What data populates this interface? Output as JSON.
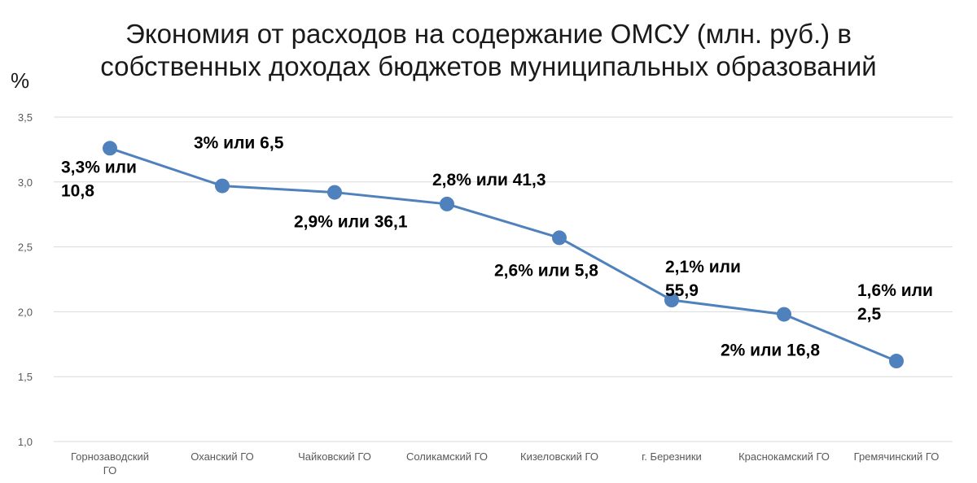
{
  "chart_data": {
    "type": "line",
    "title": [
      "Экономия от расходов на содержание ОМСУ (млн. руб.) в",
      "собственных доходах бюджетов муниципальных образований"
    ],
    "ylabel": "%",
    "ylim": [
      1.0,
      3.5
    ],
    "yticks": [
      "1,0",
      "1,5",
      "2,0",
      "2,5",
      "3,0",
      "3,5"
    ],
    "grid": true,
    "categories": [
      [
        "Горнозаводский",
        "ГО"
      ],
      [
        "Оханский ГО"
      ],
      [
        "Чайковский ГО"
      ],
      [
        "Соликамский ГО"
      ],
      [
        "Кизеловский ГО"
      ],
      [
        "г. Березники"
      ],
      [
        "Краснокамский ГО"
      ],
      [
        "Гремячинский ГО"
      ]
    ],
    "values": [
      3.26,
      2.97,
      2.92,
      2.83,
      2.57,
      2.09,
      1.98,
      1.62
    ],
    "data_labels": [
      [
        "3,3% или",
        "10,8"
      ],
      [
        "3% или 6,5"
      ],
      [
        "2,9% или 36,1"
      ],
      [
        "2,8% или 41,3"
      ],
      [
        "2,6% или 5,8"
      ],
      [
        "2,1% или",
        "55,9"
      ],
      [
        "2% или 16,8"
      ],
      [
        "1,6% или",
        "2,5"
      ]
    ],
    "colors": {
      "line": "#4F81BD",
      "grid": "#D9D9D9"
    }
  }
}
